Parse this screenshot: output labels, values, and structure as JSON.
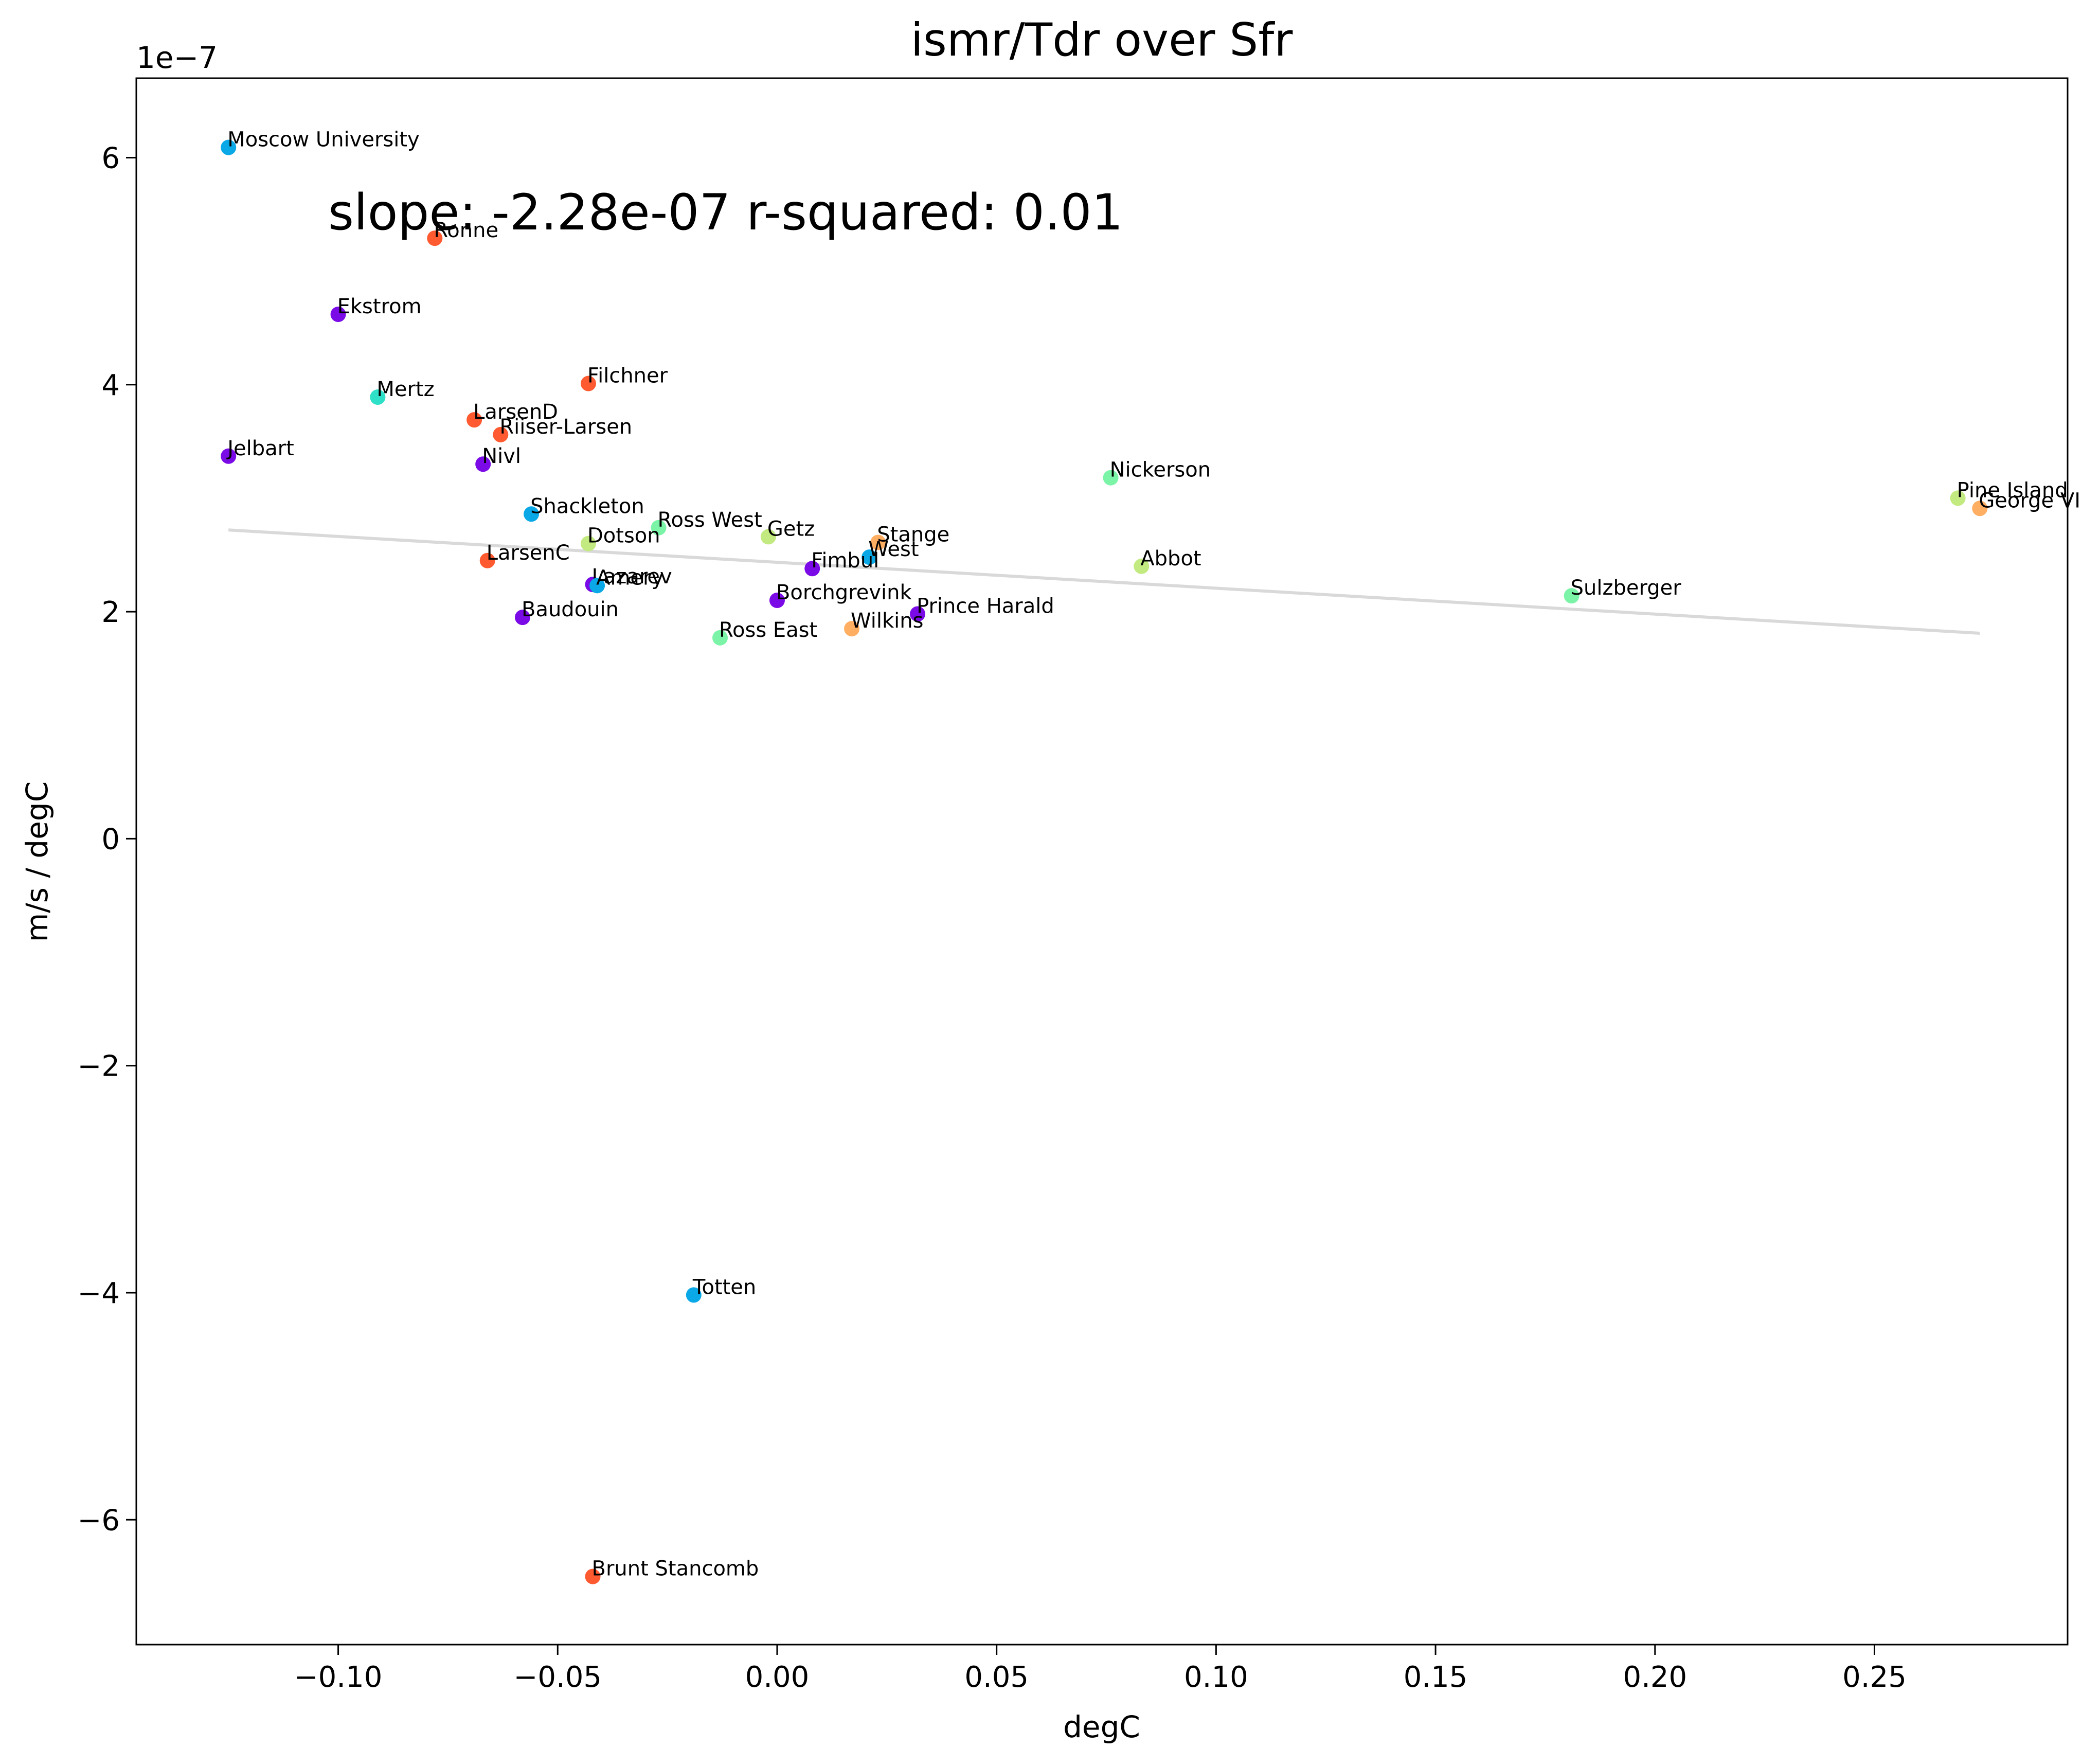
{
  "chart_data": {
    "type": "scatter",
    "title": "ismr/Tdr over Sfr",
    "xlabel": "degC",
    "ylabel": "m/s / degC",
    "y_offset_label": "1e−7",
    "annotation": "slope: -2.28e-07    r-squared: 0.01",
    "xlim": [
      -0.146,
      0.294
    ],
    "ylim": [
      -7.1,
      6.7
    ],
    "y_multiplier": 1e-07,
    "xticks": [
      -0.1,
      -0.05,
      0.0,
      0.05,
      0.1,
      0.15,
      0.2,
      0.25
    ],
    "xtick_labels": [
      "−0.10",
      "−0.05",
      "0.00",
      "0.05",
      "0.10",
      "0.15",
      "0.20",
      "0.25"
    ],
    "yticks": [
      -6,
      -4,
      -2,
      0,
      2,
      4,
      6
    ],
    "ytick_labels": [
      "−6",
      "−4",
      "−2",
      "0",
      "2",
      "4",
      "6"
    ],
    "grid": false,
    "trend_line": {
      "x": [
        -0.125,
        0.274
      ],
      "y": [
        2.72,
        1.81
      ],
      "color": "#d9d9d9"
    },
    "points": [
      {
        "name": "Moscow University",
        "x": -0.125,
        "y": 6.09,
        "color": "#0aa8e6"
      },
      {
        "name": "Ronne",
        "x": -0.078,
        "y": 5.29,
        "color": "#ff5a30"
      },
      {
        "name": "Ekstrom",
        "x": -0.1,
        "y": 4.62,
        "color": "#7a0ae6"
      },
      {
        "name": "Mertz",
        "x": -0.091,
        "y": 3.89,
        "color": "#2ee0c8"
      },
      {
        "name": "Filchner",
        "x": -0.043,
        "y": 4.01,
        "color": "#ff5a30"
      },
      {
        "name": "LarsenD",
        "x": -0.069,
        "y": 3.69,
        "color": "#ff5a30"
      },
      {
        "name": "Riiser-Larsen",
        "x": -0.063,
        "y": 3.56,
        "color": "#ff5a30"
      },
      {
        "name": "Jelbart",
        "x": -0.125,
        "y": 3.37,
        "color": "#7a0ae6"
      },
      {
        "name": "Nivl",
        "x": -0.067,
        "y": 3.3,
        "color": "#7a0ae6"
      },
      {
        "name": "Nickerson",
        "x": 0.076,
        "y": 3.18,
        "color": "#7cf4a8"
      },
      {
        "name": "Pine Island",
        "x": 0.269,
        "y": 3.0,
        "color": "#c2ea80"
      },
      {
        "name": "George VI",
        "x": 0.274,
        "y": 2.91,
        "color": "#ffae62"
      },
      {
        "name": "Shackleton",
        "x": -0.056,
        "y": 2.86,
        "color": "#0aa8e6"
      },
      {
        "name": "Ross West",
        "x": -0.027,
        "y": 2.74,
        "color": "#7cf4a8"
      },
      {
        "name": "Getz",
        "x": -0.002,
        "y": 2.66,
        "color": "#c2ea80"
      },
      {
        "name": "Dotson",
        "x": -0.043,
        "y": 2.6,
        "color": "#c2ea80"
      },
      {
        "name": "Stange",
        "x": 0.023,
        "y": 2.61,
        "color": "#ffae62"
      },
      {
        "name": "West",
        "x": 0.021,
        "y": 2.48,
        "color": "#0aa8e6"
      },
      {
        "name": "LarsenC",
        "x": -0.066,
        "y": 2.45,
        "color": "#ff5a30"
      },
      {
        "name": "Abbot",
        "x": 0.083,
        "y": 2.4,
        "color": "#c2ea80"
      },
      {
        "name": "Fimbul",
        "x": 0.008,
        "y": 2.38,
        "color": "#7a0ae6"
      },
      {
        "name": "Lazarev",
        "x": -0.042,
        "y": 2.24,
        "color": "#7a0ae6"
      },
      {
        "name": "Amery",
        "x": -0.041,
        "y": 2.23,
        "color": "#0aa8e6"
      },
      {
        "name": "Sulzberger",
        "x": 0.181,
        "y": 2.14,
        "color": "#7cf4a8"
      },
      {
        "name": "Borchgrevink",
        "x": 0.0,
        "y": 2.1,
        "color": "#7a0ae6"
      },
      {
        "name": "Prince Harald",
        "x": 0.032,
        "y": 1.98,
        "color": "#7a0ae6"
      },
      {
        "name": "Baudouin",
        "x": -0.058,
        "y": 1.95,
        "color": "#7a0ae6"
      },
      {
        "name": "Wilkins",
        "x": 0.017,
        "y": 1.85,
        "color": "#ffae62"
      },
      {
        "name": "Ross East",
        "x": -0.013,
        "y": 1.77,
        "color": "#7cf4a8"
      },
      {
        "name": "Totten",
        "x": -0.019,
        "y": -4.02,
        "color": "#0aa8e6"
      },
      {
        "name": "Brunt Stancomb",
        "x": -0.042,
        "y": -6.5,
        "color": "#ff5a30"
      }
    ]
  }
}
